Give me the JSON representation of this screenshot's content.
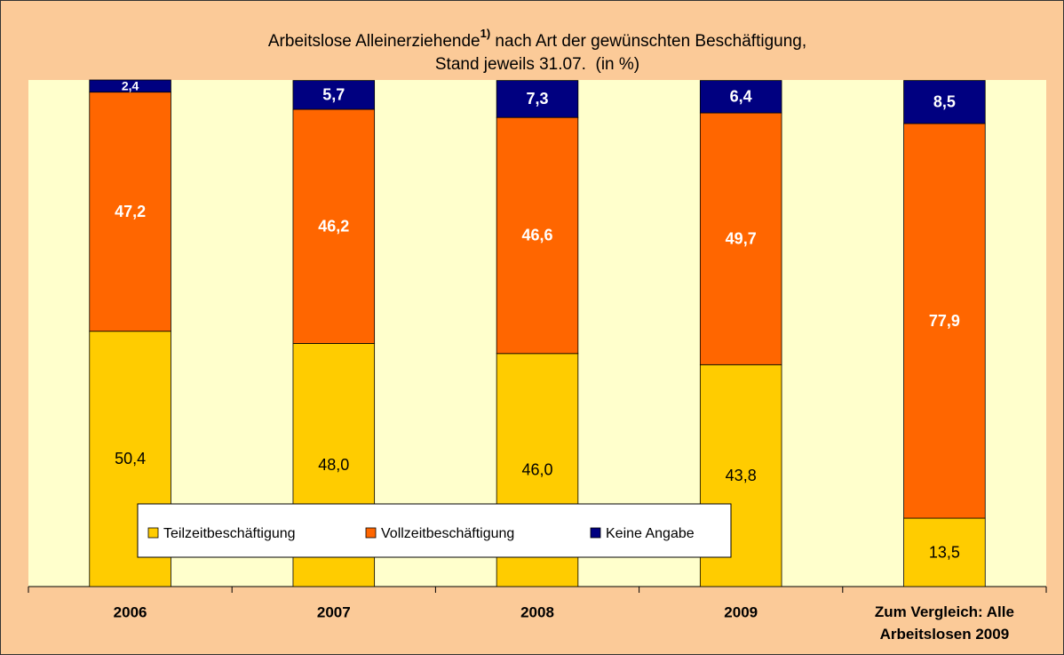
{
  "chart_data": {
    "type": "stacked_bar",
    "title": {
      "main": "Arbeitslose Alleinerziehende",
      "footnote": "1)",
      "rest": " nach Art der gewünschten Beschäftigung,",
      "line2": "Stand jeweils 31.07.  (in %)"
    },
    "categories": [
      "2006",
      "2007",
      "2008",
      "2009",
      "Zum Vergleich: Alle\nArbeitslosen 2009"
    ],
    "ylim": [
      0,
      100
    ],
    "series": [
      {
        "name": "Teilzeitbeschäftigung",
        "color": "#ffcc00",
        "label_color": "#000000",
        "values": [
          50.4,
          48.0,
          46.0,
          43.8,
          13.5
        ],
        "value_labels": [
          "50,4",
          "48,0",
          "46,0",
          "43,8",
          "13,5"
        ]
      },
      {
        "name": "Vollzeitbeschäftigung",
        "color": "#ff6600",
        "label_color": "#ffffff",
        "values": [
          47.2,
          46.2,
          46.6,
          49.7,
          77.9
        ],
        "value_labels": [
          "47,2",
          "46,2",
          "46,6",
          "49,7",
          "77,9"
        ]
      },
      {
        "name": "Keine Angabe",
        "color": "#000080",
        "label_color": "#ffffff",
        "values": [
          2.4,
          5.7,
          7.3,
          6.4,
          8.5
        ],
        "value_labels": [
          "2,4",
          "5,7",
          "7,3",
          "6,4",
          "8,5"
        ]
      }
    ],
    "legend": "bottom-left"
  }
}
